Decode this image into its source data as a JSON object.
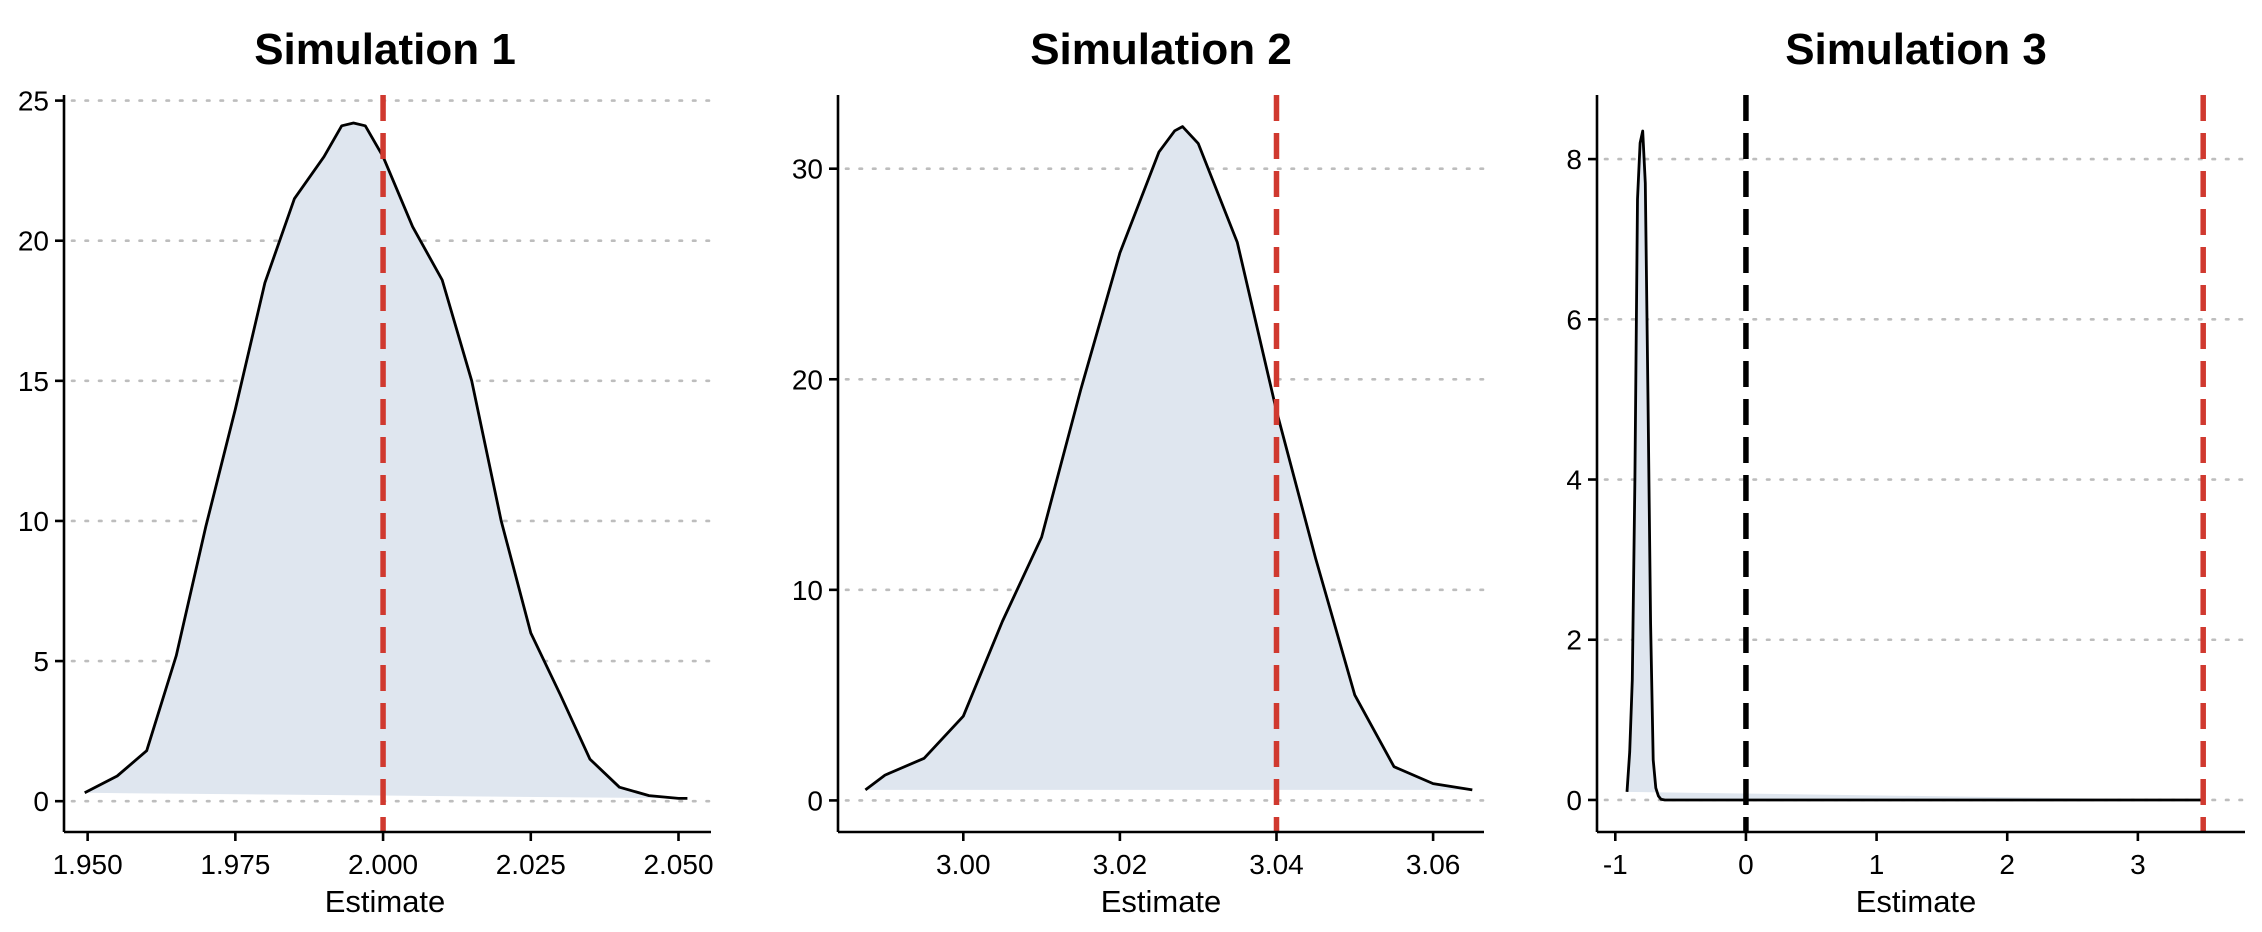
{
  "chart_data": [
    {
      "type": "area",
      "title": "Simulation 1",
      "xlabel": "Estimate",
      "ylabel": "",
      "xlim": [
        1.946,
        2.0555
      ],
      "ylim": [
        -1.1,
        25.2
      ],
      "xticks": [
        1.95,
        1.975,
        2.0,
        2.025,
        2.05
      ],
      "xtick_labels": [
        "1.950",
        "1.975",
        "2.000",
        "2.025",
        "2.050"
      ],
      "yticks": [
        0,
        5,
        10,
        15,
        20,
        25
      ],
      "ytick_labels": [
        "0",
        "5",
        "10",
        "15",
        "20",
        "25"
      ],
      "grid": "horizontal-dotted",
      "series": [
        {
          "x": [
            1.9495,
            1.955,
            1.96,
            1.965,
            1.97,
            1.975,
            1.98,
            1.985,
            1.99,
            1.993,
            1.995,
            1.997,
            2.0,
            2.005,
            2.01,
            2.015,
            2.02,
            2.025,
            2.03,
            2.035,
            2.04,
            2.045,
            2.05,
            2.0515
          ],
          "y": [
            0.3,
            0.9,
            1.8,
            5.2,
            9.8,
            14.0,
            18.5,
            21.5,
            23.0,
            24.1,
            24.2,
            24.1,
            23.0,
            20.5,
            18.6,
            15.0,
            10.0,
            6.0,
            3.8,
            1.5,
            0.5,
            0.2,
            0.1,
            0.1
          ]
        }
      ],
      "reference_lines": [
        {
          "x": 2.0,
          "color": "#d0392f",
          "style": "dashed"
        }
      ]
    },
    {
      "type": "area",
      "title": "Simulation 2",
      "xlabel": "Estimate",
      "ylabel": "",
      "xlim": [
        2.984,
        3.0665
      ],
      "ylim": [
        -1.5,
        33.5
      ],
      "xticks": [
        3.0,
        3.02,
        3.04,
        3.06
      ],
      "xtick_labels": [
        "3.00",
        "3.02",
        "3.04",
        "3.06"
      ],
      "yticks": [
        0,
        10,
        20,
        30
      ],
      "ytick_labels": [
        "0",
        "10",
        "20",
        "30"
      ],
      "grid": "horizontal-dotted",
      "series": [
        {
          "x": [
            2.9875,
            2.99,
            2.995,
            3.0,
            3.005,
            3.01,
            3.015,
            3.02,
            3.025,
            3.027,
            3.028,
            3.03,
            3.035,
            3.04,
            3.045,
            3.05,
            3.055,
            3.06,
            3.065
          ],
          "y": [
            0.5,
            1.2,
            2.0,
            4.0,
            8.5,
            12.5,
            19.5,
            26.0,
            30.8,
            31.8,
            32.0,
            31.2,
            26.5,
            18.5,
            11.5,
            5.0,
            1.6,
            0.8,
            0.5
          ]
        }
      ],
      "reference_lines": [
        {
          "x": 3.04,
          "color": "#d0392f",
          "style": "dashed"
        }
      ]
    },
    {
      "type": "area",
      "title": "Simulation 3",
      "xlabel": "Estimate",
      "ylabel": "",
      "xlim": [
        -1.14,
        3.82
      ],
      "ylim": [
        -0.4,
        8.8
      ],
      "xticks": [
        -1,
        0,
        1,
        2,
        3
      ],
      "xtick_labels": [
        "-1",
        "0",
        "1",
        "2",
        "3"
      ],
      "yticks": [
        0,
        2,
        4,
        6,
        8
      ],
      "ytick_labels": [
        "0",
        "2",
        "4",
        "6",
        "8"
      ],
      "grid": "horizontal-dotted",
      "series": [
        {
          "x": [
            -0.91,
            -0.89,
            -0.87,
            -0.85,
            -0.83,
            -0.81,
            -0.79,
            -0.77,
            -0.75,
            -0.73,
            -0.71,
            -0.69,
            -0.67,
            -0.65,
            -0.62,
            0.0,
            1.0,
            2.0,
            3.0,
            3.5
          ],
          "y": [
            0.1,
            0.6,
            1.5,
            4.0,
            7.5,
            8.2,
            8.35,
            7.7,
            5.0,
            2.2,
            0.5,
            0.15,
            0.05,
            0.01,
            0.0,
            0.0,
            0.0,
            0.0,
            0.0,
            0.0
          ]
        }
      ],
      "reference_lines": [
        {
          "x": 0.0,
          "color": "#000000",
          "style": "dashed"
        },
        {
          "x": 3.5,
          "color": "#d0392f",
          "style": "dashed"
        }
      ]
    }
  ]
}
